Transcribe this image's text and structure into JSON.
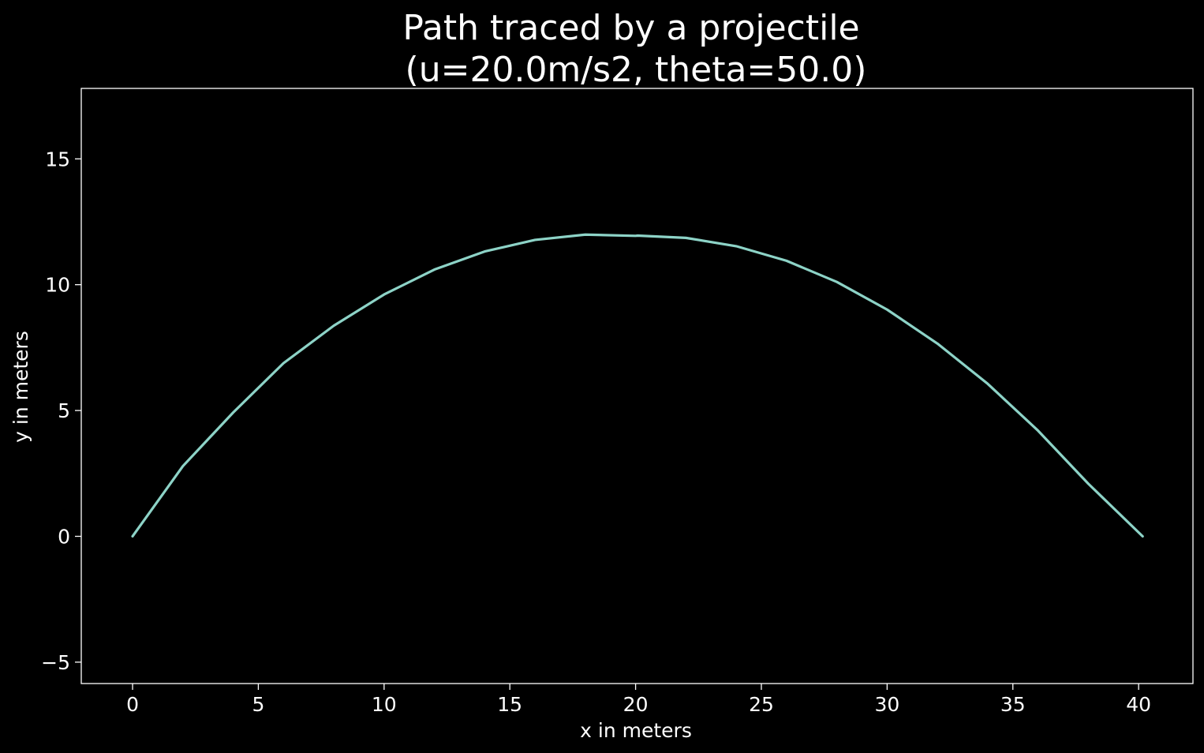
{
  "chart_data": {
    "type": "line",
    "title": [
      "Path traced by a projectile",
      "(u=20.0m/s2, theta=50.0)"
    ],
    "xlabel": "x in meters",
    "ylabel": "y in meters",
    "xlim": [
      -2.04,
      42.16
    ],
    "ylim": [
      -5.85,
      17.8
    ],
    "xticks": [
      0,
      5,
      10,
      15,
      20,
      25,
      30,
      35,
      40
    ],
    "xtick_labels": [
      "0",
      "5",
      "10",
      "15",
      "20",
      "25",
      "30",
      "35",
      "40"
    ],
    "yticks": [
      -5,
      0,
      5,
      10,
      15
    ],
    "ytick_labels": [
      "−5",
      "0",
      "5",
      "10",
      "15"
    ],
    "grid": false,
    "colors": {
      "background": "#000000",
      "axes": "#ffffff",
      "line": "#8dd3c7"
    },
    "series": [
      {
        "x": [
          0,
          2,
          4,
          6,
          8,
          10,
          12,
          14,
          16,
          18,
          20,
          20.08,
          22,
          24,
          26,
          28,
          30,
          32,
          34,
          36,
          38,
          40.16
        ],
        "y": [
          0,
          2.79,
          4.92,
          6.88,
          8.37,
          9.61,
          10.6,
          11.32,
          11.78,
          11.99,
          11.94,
          11.95,
          11.86,
          11.53,
          10.95,
          10.11,
          9.01,
          7.66,
          6.06,
          4.2,
          2.09,
          0
        ]
      }
    ]
  }
}
